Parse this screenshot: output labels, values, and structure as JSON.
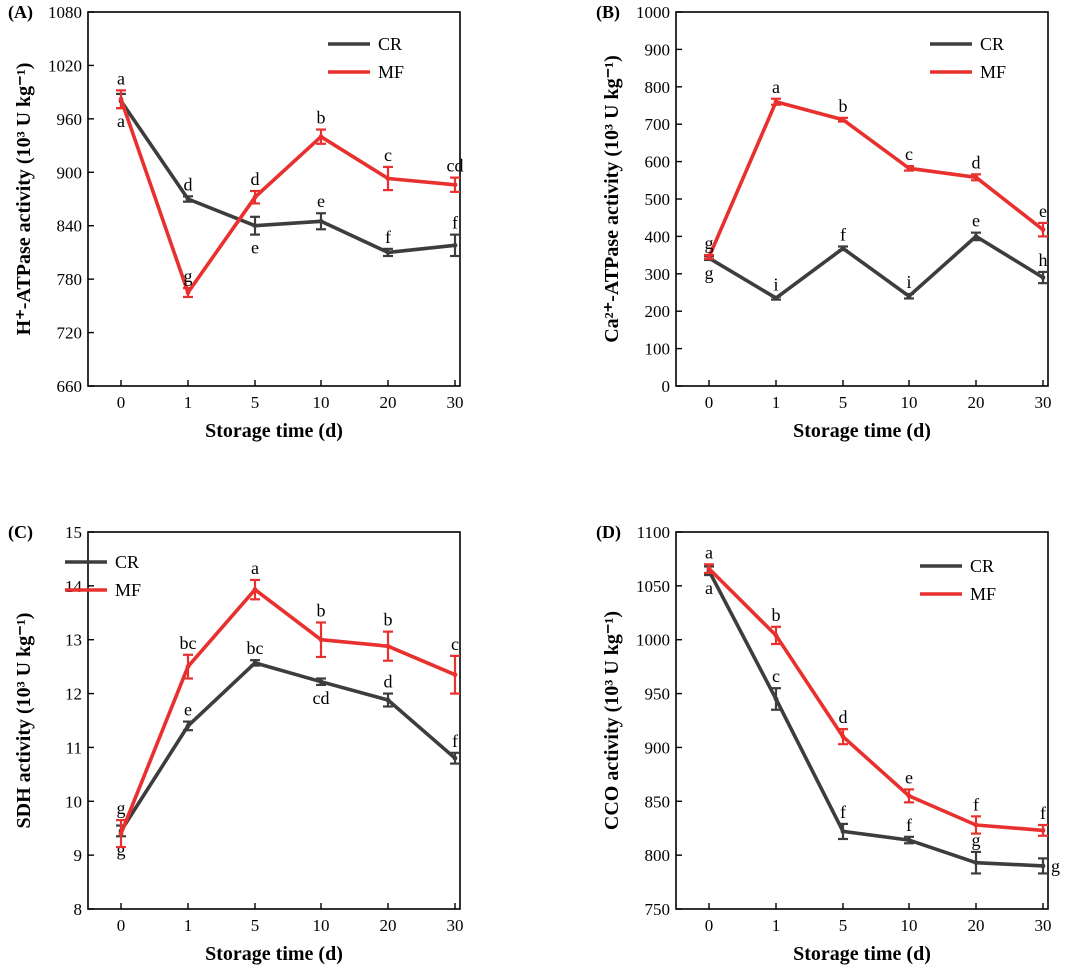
{
  "chart_data": [
    {
      "type": "line",
      "panel_label": "(A)",
      "x": [
        "0",
        "1",
        "5",
        "10",
        "20",
        "30"
      ],
      "xlabel": "Storage time (d)",
      "ylabel": "H⁺-ATPase activity (10³ U kg⁻¹)",
      "ylim": [
        660,
        1080
      ],
      "yticks": [
        660,
        720,
        780,
        840,
        900,
        960,
        1020,
        1080
      ],
      "legend_position": "top-right",
      "series": [
        {
          "name": "CR",
          "color": "#3d3d3d",
          "values": [
            980,
            870,
            840,
            845,
            810,
            818
          ],
          "errors": [
            8,
            3,
            10,
            9,
            4,
            12
          ],
          "letters": [
            "a",
            "d",
            "e",
            "e",
            "f",
            "f"
          ],
          "letter_pos": [
            "below",
            "above",
            "below",
            "above",
            "above",
            "above"
          ]
        },
        {
          "name": "MF",
          "color": "#e8312f",
          "values": [
            982,
            765,
            872,
            940,
            893,
            886
          ],
          "errors": [
            10,
            5,
            7,
            8,
            13,
            8
          ],
          "letters": [
            "a",
            "g",
            "d",
            "b",
            "c",
            "cd"
          ],
          "letter_pos": [
            "above",
            "above",
            "above",
            "above",
            "above",
            "above"
          ]
        }
      ]
    },
    {
      "type": "line",
      "panel_label": "(B)",
      "x": [
        "0",
        "1",
        "5",
        "10",
        "20",
        "30"
      ],
      "xlabel": "Storage time (d)",
      "ylabel": "Ca²⁺-ATPase activity (10³ U kg⁻¹)",
      "ylim": [
        0,
        1000
      ],
      "yticks": [
        0,
        100,
        200,
        300,
        400,
        500,
        600,
        700,
        800,
        900,
        1000
      ],
      "legend_position": "top-right",
      "series": [
        {
          "name": "CR",
          "color": "#3d3d3d",
          "values": [
            342,
            235,
            368,
            240,
            400,
            290
          ],
          "errors": [
            5,
            4,
            5,
            6,
            10,
            15
          ],
          "letters": [
            "g",
            "i",
            "f",
            "i",
            "e",
            "h"
          ],
          "letter_pos": [
            "below",
            "above",
            "above",
            "above",
            "above",
            "above"
          ]
        },
        {
          "name": "MF",
          "color": "#e8312f",
          "values": [
            345,
            760,
            712,
            582,
            558,
            418
          ],
          "errors": [
            5,
            8,
            5,
            6,
            8,
            18
          ],
          "letters": [
            "g",
            "a",
            "b",
            "c",
            "d",
            "e"
          ],
          "letter_pos": [
            "above",
            "above",
            "above",
            "above",
            "above",
            "above"
          ]
        }
      ]
    },
    {
      "type": "line",
      "panel_label": "(C)",
      "x": [
        "0",
        "1",
        "5",
        "10",
        "20",
        "30"
      ],
      "xlabel": "Storage time (d)",
      "ylabel": "SDH activity (10³ U kg⁻¹)",
      "ylim": [
        8,
        15
      ],
      "yticks": [
        8,
        9,
        10,
        11,
        12,
        13,
        14,
        15
      ],
      "legend_position": "top-left",
      "series": [
        {
          "name": "CR",
          "color": "#3d3d3d",
          "values": [
            9.45,
            11.4,
            12.57,
            12.22,
            11.88,
            10.8
          ],
          "errors": [
            0.1,
            0.08,
            0.05,
            0.06,
            0.12,
            0.1
          ],
          "letters": [
            "g",
            "e",
            "bc",
            "cd",
            "d",
            "f"
          ],
          "letter_pos": [
            "below",
            "above",
            "above",
            "below",
            "above",
            "above"
          ]
        },
        {
          "name": "MF",
          "color": "#e8312f",
          "values": [
            9.4,
            12.5,
            13.93,
            13.0,
            12.88,
            12.35
          ],
          "errors": [
            0.25,
            0.22,
            0.18,
            0.32,
            0.27,
            0.35
          ],
          "letters": [
            "g",
            "bc",
            "a",
            "b",
            "b",
            "c"
          ],
          "letter_pos": [
            "above",
            "above",
            "above",
            "above",
            "above",
            "above"
          ]
        }
      ]
    },
    {
      "type": "line",
      "panel_label": "(D)",
      "x": [
        "0",
        "1",
        "5",
        "10",
        "20",
        "30"
      ],
      "xlabel": "Storage time (d)",
      "ylabel": "CCO activity (10³ U kg⁻¹)",
      "ylim": [
        750,
        1100
      ],
      "yticks": [
        750,
        800,
        850,
        900,
        950,
        1000,
        1050,
        1100
      ],
      "legend_position": "top-right",
      "series": [
        {
          "name": "CR",
          "color": "#3d3d3d",
          "values": [
            1064,
            945,
            822,
            814,
            793,
            790
          ],
          "errors": [
            4,
            10,
            7,
            3,
            10,
            7
          ],
          "letters": [
            "a",
            "c",
            "f",
            "f",
            "g",
            "g"
          ],
          "letter_pos": [
            "below",
            "above",
            "above",
            "above",
            "above",
            "right"
          ]
        },
        {
          "name": "MF",
          "color": "#e8312f",
          "values": [
            1066,
            1004,
            910,
            855,
            828,
            823
          ],
          "errors": [
            4,
            8,
            7,
            6,
            8,
            5
          ],
          "letters": [
            "a",
            "b",
            "d",
            "e",
            "f",
            "f"
          ],
          "letter_pos": [
            "above",
            "above",
            "above",
            "above",
            "above",
            "above"
          ]
        }
      ]
    }
  ]
}
